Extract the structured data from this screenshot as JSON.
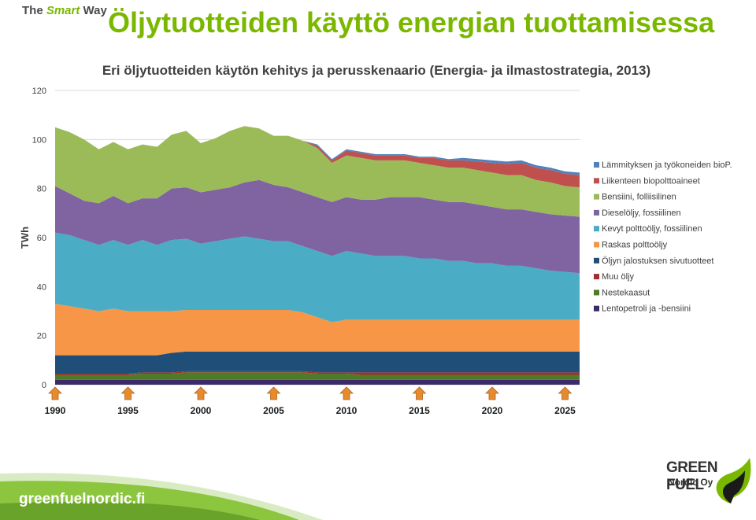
{
  "brand": {
    "prefix": "The",
    "emphasis": "Smart",
    "suffix": "Way"
  },
  "page_title": "Öljytuotteiden käyttö energian tuottamisessa",
  "logo": {
    "line1": "GREEN FUEL",
    "line2": "Nordic Oy"
  },
  "footer": {
    "url": "greenfuelnordic.fi"
  },
  "colors": {
    "title_green": "#7ab800",
    "arrow_orange": "#e68a2e",
    "footer_green": "#8cc63f"
  },
  "chart_data": {
    "type": "area",
    "stacked": true,
    "title": "Eri öljytuotteiden käytön kehitys ja perusskenaario (Energia- ja ilmastostrategia, 2013)",
    "ylabel": "TWh",
    "xlabel": "",
    "ylim": [
      0,
      120
    ],
    "yticks": [
      0,
      20,
      40,
      60,
      80,
      100,
      120
    ],
    "grid": true,
    "legend_position": "right",
    "marker_arrow_years": [
      1990,
      1995,
      2000,
      2005,
      2010,
      2015,
      2020,
      2025
    ],
    "x": [
      1990,
      1991,
      1992,
      1993,
      1994,
      1995,
      1996,
      1997,
      1998,
      1999,
      2000,
      2001,
      2002,
      2003,
      2004,
      2005,
      2006,
      2007,
      2008,
      2009,
      2010,
      2011,
      2012,
      2013,
      2014,
      2015,
      2016,
      2017,
      2018,
      2019,
      2020,
      2021,
      2022,
      2023,
      2024,
      2025,
      2026
    ],
    "series": [
      {
        "name": "Lentopetroli ja -bensiini",
        "color": "#3c2a6b",
        "values": [
          2,
          2,
          2,
          2,
          2,
          2,
          2,
          2,
          2,
          2,
          2,
          2,
          2,
          2,
          2,
          2,
          2,
          2,
          2,
          2,
          2,
          2,
          2,
          2,
          2,
          2,
          2,
          2,
          2,
          2,
          2,
          2,
          2,
          2,
          2,
          2,
          2
        ]
      },
      {
        "name": "Nestekaasut",
        "color": "#4f7a28",
        "values": [
          2,
          2,
          2,
          2,
          2,
          2,
          2.5,
          2.5,
          2.5,
          3,
          3,
          3,
          3,
          3,
          3,
          3,
          3,
          3,
          2.5,
          2.5,
          2.5,
          2,
          2,
          2,
          2,
          2,
          2,
          2,
          2,
          2,
          2,
          2,
          2,
          2,
          2,
          2,
          2
        ]
      },
      {
        "name": "Muu öljy",
        "color": "#a03030",
        "values": [
          0.5,
          0.5,
          0.5,
          0.5,
          0.5,
          0.5,
          0.5,
          0.5,
          0.5,
          0.5,
          0.5,
          0.5,
          0.5,
          0.5,
          0.5,
          0.5,
          0.5,
          0.5,
          0.5,
          0.5,
          0.5,
          1,
          1,
          1,
          1,
          1,
          1,
          1,
          1,
          1,
          1,
          1,
          1,
          1,
          1,
          1,
          1
        ]
      },
      {
        "name": "Öljyn jalostuksen sivutuotteet",
        "color": "#1f4e79",
        "values": [
          7.5,
          7.5,
          7.5,
          7.5,
          7.5,
          7.5,
          7,
          7,
          8,
          8,
          8,
          8,
          8,
          8,
          8,
          8,
          8,
          8,
          8.5,
          8.5,
          8.5,
          8.5,
          8.5,
          8.5,
          8.5,
          8.5,
          8.5,
          8.5,
          8.5,
          8.5,
          8.5,
          8.5,
          8.5,
          8.5,
          8.5,
          8.5,
          8.5
        ]
      },
      {
        "name": "Raskas polttoöljy",
        "color": "#f79646",
        "values": [
          21,
          20,
          19,
          18,
          19,
          18,
          18,
          18,
          17,
          17,
          17,
          17,
          17,
          17,
          17,
          17,
          17,
          16,
          14,
          12,
          13,
          13,
          13,
          13,
          13,
          13,
          13,
          13,
          13,
          13,
          13,
          13,
          13,
          13,
          13,
          13,
          13
        ]
      },
      {
        "name": "Kevyt polttoöljy, fossiilinen",
        "color": "#4bacc6",
        "values": [
          29,
          29,
          28,
          27,
          28,
          27,
          29,
          27,
          29,
          29,
          27,
          28,
          29,
          30,
          29,
          28,
          28,
          27,
          27,
          27,
          28,
          27,
          26,
          26,
          26,
          25,
          25,
          24,
          24,
          23,
          23,
          22,
          22,
          21,
          20,
          19.5,
          19
        ]
      },
      {
        "name": "Dieselöljy, fossiilinen",
        "color": "#8064a2",
        "values": [
          19,
          17,
          16,
          17,
          18,
          17,
          17,
          19,
          21,
          21,
          21,
          21,
          21,
          22,
          24,
          23,
          22,
          22,
          22,
          22,
          22,
          22,
          23,
          24,
          24,
          25,
          24,
          24,
          24,
          24,
          23,
          23,
          23,
          23,
          23,
          23,
          23
        ]
      },
      {
        "name": "Bensiini, folliisilinen",
        "color": "#9bbb59",
        "values": [
          24,
          25,
          25,
          22,
          22,
          22,
          22,
          21,
          22,
          23,
          20,
          21,
          23,
          23,
          21,
          20,
          21,
          21,
          20,
          16,
          17,
          17,
          16,
          15,
          15,
          14,
          14,
          14,
          14,
          14,
          14,
          14,
          14,
          13,
          13,
          12,
          12
        ]
      },
      {
        "name": "Liikenteen biopolttoaineet",
        "color": "#c0504d",
        "values": [
          0,
          0,
          0,
          0,
          0,
          0,
          0,
          0,
          0,
          0,
          0,
          0,
          0,
          0,
          0,
          0,
          0,
          0,
          1,
          1,
          2,
          2,
          2,
          2,
          2,
          2,
          3,
          3,
          3,
          3.5,
          4,
          4.5,
          5,
          5,
          5,
          5,
          5
        ]
      },
      {
        "name": "Lämmityksen ja työkoneiden bioP.",
        "color": "#4f81bd",
        "values": [
          0,
          0,
          0,
          0,
          0,
          0,
          0,
          0,
          0,
          0,
          0,
          0,
          0,
          0,
          0,
          0,
          0,
          0,
          0.5,
          0.5,
          0.5,
          0.5,
          0.5,
          0.5,
          0.5,
          0.5,
          0.5,
          0.5,
          1,
          1,
          1,
          1,
          1,
          1,
          1,
          1,
          1
        ]
      }
    ]
  }
}
